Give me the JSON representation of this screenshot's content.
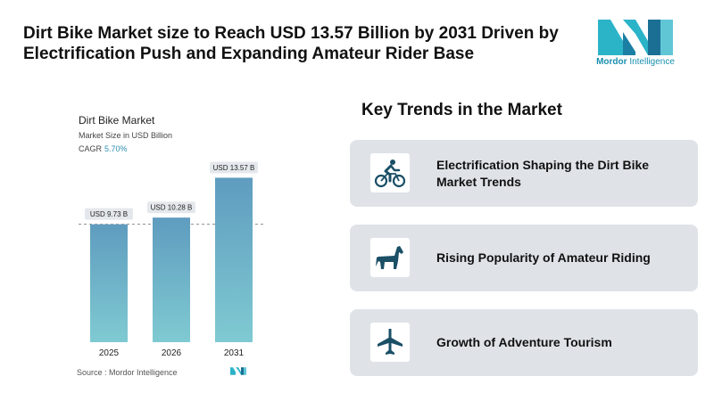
{
  "headline": "Dirt Bike Market size to Reach USD 13.57 Billion by 2031 Driven by Electrification Push and Expanding Amateur Rider Base",
  "logo": {
    "word1": "Mordor",
    "word2": "Intelligence"
  },
  "chart_data": {
    "type": "bar",
    "title": "Dirt Bike Market",
    "subtitle": "Market Size in USD Billion",
    "cagr_label": "CAGR",
    "cagr_value": "5.70%",
    "categories": [
      "2025",
      "2026",
      "2031"
    ],
    "values": [
      9.73,
      10.28,
      13.57
    ],
    "data_labels": [
      "USD 9.73 B",
      "USD 10.28 B",
      "USD 13.57 B"
    ],
    "ylim": [
      0,
      15
    ],
    "grid": false,
    "reference_line": 9.73,
    "colors": {
      "bar_top": "#5f9cbf",
      "bar_bottom": "#7fcad2",
      "label_bg": "#e4e8ec"
    }
  },
  "source": "Source : Mordor Intelligence",
  "trends": {
    "title": "Key Trends in the Market",
    "items": [
      {
        "text": "Electrification Shaping the Dirt Bike Market Trends",
        "icon": "cyclist-icon"
      },
      {
        "text": "Rising Popularity of Amateur Riding",
        "icon": "horse-icon"
      },
      {
        "text": "Growth of Adventure Tourism",
        "icon": "airplane-icon"
      }
    ]
  },
  "colors": {
    "accent": "#1b8fb0",
    "icon": "#1a4f66",
    "card_bg": "#dfe3e8"
  }
}
